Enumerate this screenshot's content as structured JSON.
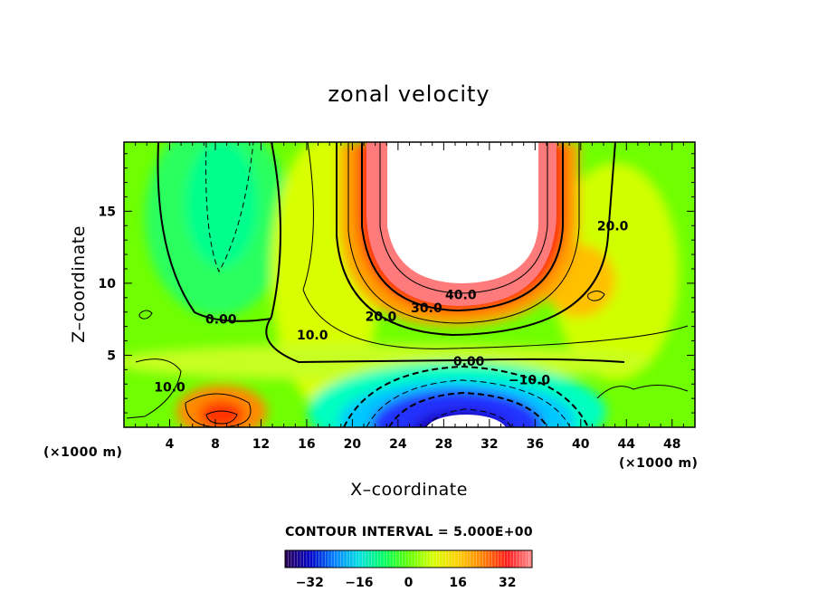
{
  "chart_data": {
    "type": "heatmap",
    "title": "zonal velocity",
    "xlabel": "X–coordinate",
    "ylabel": "Z–coordinate",
    "x_unit_left": "(×1000 m)",
    "x_unit_right": "(×1000 m)",
    "xlim": [
      0,
      50
    ],
    "ylim": [
      0,
      19.8
    ],
    "x_ticks": [
      "4",
      "8",
      "12",
      "16",
      "20",
      "24",
      "28",
      "32",
      "36",
      "40",
      "44",
      "48"
    ],
    "y_ticks": [
      "5",
      "10",
      "15"
    ],
    "contour_interval_text": "CONTOUR INTERVAL = 5.000E+00",
    "colorbar": {
      "range": [
        -40,
        40
      ],
      "ticks": [
        "−32",
        "−16",
        "0",
        "16",
        "32"
      ],
      "colors": [
        "#2a0050",
        "#0000c8",
        "#0080ff",
        "#00e0e0",
        "#00ff60",
        "#60ff00",
        "#d8ff00",
        "#ffd000",
        "#ff8000",
        "#ff1a1a",
        "#ff9090"
      ]
    },
    "contour_labels": [
      {
        "text": "40.0",
        "x": 29.5,
        "z": 9.2
      },
      {
        "text": "30.0",
        "x": 26.5,
        "z": 8.3
      },
      {
        "text": "20.0",
        "x": 22.5,
        "z": 7.7
      },
      {
        "text": "20.0",
        "x": 42.8,
        "z": 14.0
      },
      {
        "text": "10.0",
        "x": 16.5,
        "z": 6.4
      },
      {
        "text": "0.00",
        "x": 8.5,
        "z": 7.5
      },
      {
        "text": "0.00",
        "x": 30.2,
        "z": 4.6
      },
      {
        "text": "−10.0",
        "x": 35.5,
        "z": 3.3
      },
      {
        "text": "10.0",
        "x": 4.0,
        "z": 2.8
      }
    ]
  }
}
